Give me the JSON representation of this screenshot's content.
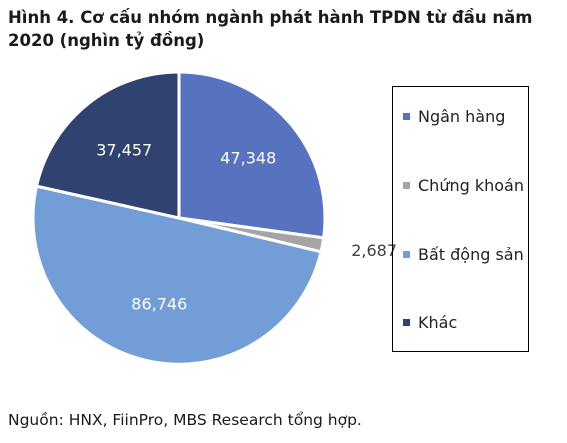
{
  "title": "Hình 4. Cơ cấu nhóm ngành phát hành TPDN từ đầu năm 2020 (nghìn tỷ đồng)",
  "source": "Nguồn: HNX, FiinPro, MBS Research tổng hợp.",
  "chart_data": {
    "type": "pie",
    "title": "Hình 4. Cơ cấu nhóm ngành phát hành TPDN từ đầu năm 2020 (nghìn tỷ đồng)",
    "legend_position": "right",
    "series": [
      {
        "name": "Ngân hàng",
        "value": 47348,
        "label": "47,348",
        "color": "#5773c0"
      },
      {
        "name": "Chứng khoán",
        "value": 2687,
        "label": "2,687",
        "color": "#a5a5a5"
      },
      {
        "name": "Bất động sản",
        "value": 86746,
        "label": "86,746",
        "color": "#729dd6"
      },
      {
        "name": "Khác",
        "value": 37457,
        "label": "37,457",
        "color": "#2f4270"
      }
    ]
  }
}
